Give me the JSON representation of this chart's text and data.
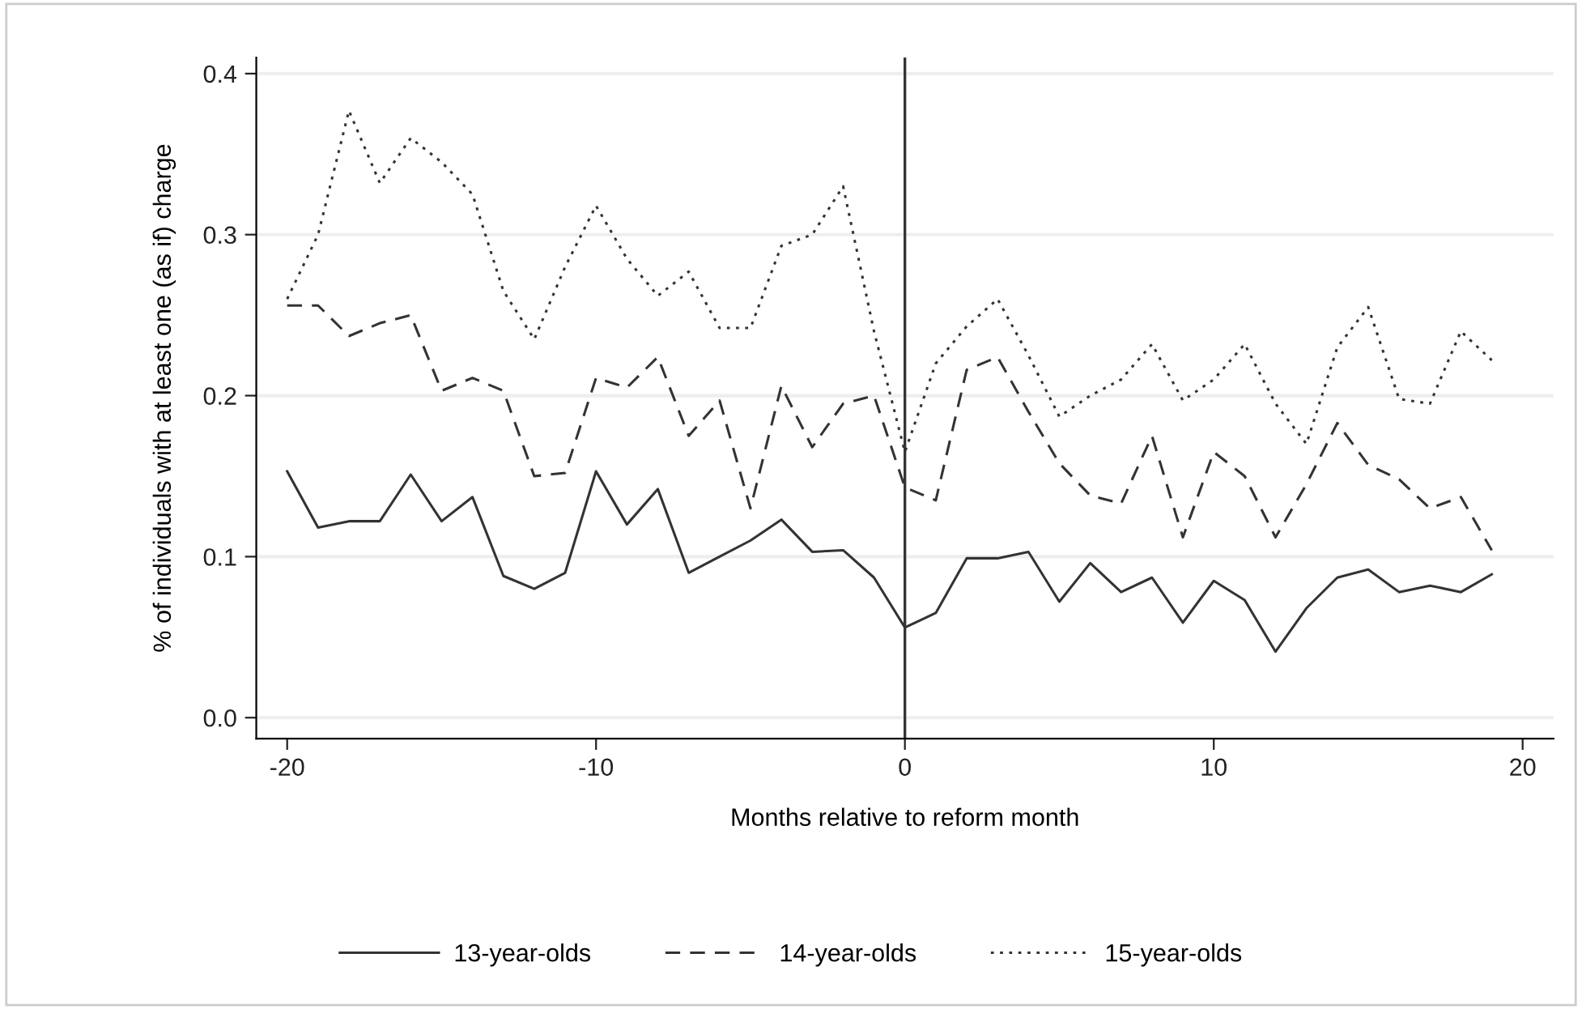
{
  "chart_data": {
    "type": "line",
    "xlabel": "Months relative to reform month",
    "ylabel": "% of individuals with at least one (as if) charge",
    "x": [
      -20,
      -19,
      -18,
      -17,
      -16,
      -15,
      -14,
      -13,
      -12,
      -11,
      -10,
      -9,
      -8,
      -7,
      -6,
      -5,
      -4,
      -3,
      -2,
      -1,
      0,
      1,
      2,
      3,
      4,
      5,
      6,
      7,
      8,
      9,
      10,
      11,
      12,
      13,
      14,
      15,
      16,
      17,
      18,
      19
    ],
    "series": [
      {
        "name": "13-year-olds",
        "color": "#333333",
        "line_style": "solid",
        "values": [
          0.153,
          0.118,
          0.122,
          0.122,
          0.151,
          0.122,
          0.137,
          0.088,
          0.08,
          0.09,
          0.153,
          0.12,
          0.142,
          0.09,
          0.1,
          0.11,
          0.123,
          0.103,
          0.104,
          0.087,
          0.056,
          0.065,
          0.099,
          0.099,
          0.103,
          0.072,
          0.096,
          0.078,
          0.087,
          0.059,
          0.085,
          0.073,
          0.041,
          0.068,
          0.087,
          0.092,
          0.078,
          0.082,
          0.078,
          0.089
        ]
      },
      {
        "name": "14-year-olds",
        "color": "#333333",
        "line_style": "dashed",
        "values": [
          0.256,
          0.256,
          0.237,
          0.245,
          0.25,
          0.203,
          0.211,
          0.203,
          0.15,
          0.152,
          0.211,
          0.205,
          0.224,
          0.175,
          0.197,
          0.13,
          0.206,
          0.168,
          0.195,
          0.2,
          0.143,
          0.135,
          0.216,
          0.224,
          0.19,
          0.158,
          0.138,
          0.133,
          0.175,
          0.112,
          0.165,
          0.15,
          0.112,
          0.145,
          0.183,
          0.157,
          0.148,
          0.13,
          0.137,
          0.104
        ]
      },
      {
        "name": "15-year-olds",
        "color": "#333333",
        "line_style": "dotted",
        "values": [
          0.26,
          0.3,
          0.377,
          0.332,
          0.36,
          0.345,
          0.325,
          0.265,
          0.235,
          0.28,
          0.318,
          0.285,
          0.262,
          0.277,
          0.242,
          0.242,
          0.293,
          0.3,
          0.33,
          0.24,
          0.165,
          0.22,
          0.243,
          0.26,
          0.225,
          0.187,
          0.2,
          0.21,
          0.232,
          0.197,
          0.21,
          0.232,
          0.195,
          0.17,
          0.23,
          0.255,
          0.198,
          0.195,
          0.24,
          0.222
        ]
      }
    ],
    "xlim": [
      -21,
      21
    ],
    "xticks": [
      -20,
      -10,
      0,
      10,
      20
    ],
    "ylim": [
      -0.013,
      0.41
    ],
    "yticks": [
      {
        "value": 0,
        "label": "0.0"
      },
      {
        "value": 0.1,
        "label": "0.1"
      },
      {
        "value": 0.2,
        "label": "0.2"
      },
      {
        "value": 0.3,
        "label": "0.3"
      },
      {
        "value": 0.4,
        "label": "0.4"
      }
    ],
    "ref_lines": [
      {
        "axis": "x",
        "value": 0,
        "color": "#333333",
        "line_style": "solid"
      }
    ],
    "grid": "y",
    "legend": "bottom",
    "marker": "none"
  }
}
